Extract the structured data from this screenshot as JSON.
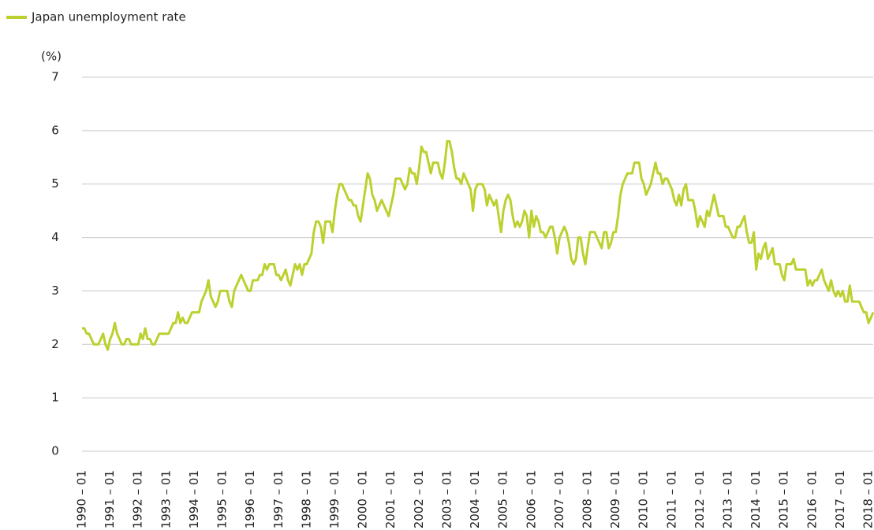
{
  "chart_data": {
    "type": "line",
    "ylabel": "(%)",
    "grid": true,
    "legend": "top-left",
    "ylim": [
      0,
      7
    ],
    "yticks": [
      0,
      1,
      2,
      3,
      4,
      5,
      6,
      7
    ],
    "categories": [
      "1990 – 01",
      null,
      null,
      null,
      null,
      null,
      null,
      null,
      null,
      null,
      null,
      null,
      "1991 – 01",
      null,
      null,
      null,
      null,
      null,
      null,
      null,
      null,
      null,
      null,
      null,
      "1992 – 01",
      null,
      null,
      null,
      null,
      null,
      null,
      null,
      null,
      null,
      null,
      null,
      "1993 – 01",
      null,
      null,
      null,
      null,
      null,
      null,
      null,
      null,
      null,
      null,
      null,
      "1994 – 01",
      null,
      null,
      null,
      null,
      null,
      null,
      null,
      null,
      null,
      null,
      null,
      "1995 – 01",
      null,
      null,
      null,
      null,
      null,
      null,
      null,
      null,
      null,
      null,
      null,
      "1996 – 01",
      null,
      null,
      null,
      null,
      null,
      null,
      null,
      null,
      null,
      null,
      null,
      "1997 – 01",
      null,
      null,
      null,
      null,
      null,
      null,
      null,
      null,
      null,
      null,
      null,
      "1998 – 01",
      null,
      null,
      null,
      null,
      null,
      null,
      null,
      null,
      null,
      null,
      null,
      "1999 – 01",
      null,
      null,
      null,
      null,
      null,
      null,
      null,
      null,
      null,
      null,
      null,
      "2000 – 01",
      null,
      null,
      null,
      null,
      null,
      null,
      null,
      null,
      null,
      null,
      null,
      "2001 – 01",
      null,
      null,
      null,
      null,
      null,
      null,
      null,
      null,
      null,
      null,
      null,
      "2002 – 01",
      null,
      null,
      null,
      null,
      null,
      null,
      null,
      null,
      null,
      null,
      null,
      "2003 – 01",
      null,
      null,
      null,
      null,
      null,
      null,
      null,
      null,
      null,
      null,
      null,
      "2004 – 01",
      null,
      null,
      null,
      null,
      null,
      null,
      null,
      null,
      null,
      null,
      null,
      "2005 – 01",
      null,
      null,
      null,
      null,
      null,
      null,
      null,
      null,
      null,
      null,
      null,
      "2006 – 01",
      null,
      null,
      null,
      null,
      null,
      null,
      null,
      null,
      null,
      null,
      null,
      "2007 – 01",
      null,
      null,
      null,
      null,
      null,
      null,
      null,
      null,
      null,
      null,
      null,
      "2008 – 01",
      null,
      null,
      null,
      null,
      null,
      null,
      null,
      null,
      null,
      null,
      null,
      "2009 – 01",
      null,
      null,
      null,
      null,
      null,
      null,
      null,
      null,
      null,
      null,
      null,
      "2010 – 01",
      null,
      null,
      null,
      null,
      null,
      null,
      null,
      null,
      null,
      null,
      null,
      "2011 – 01",
      null,
      null,
      null,
      null,
      null,
      null,
      null,
      null,
      null,
      null,
      null,
      "2012 – 01",
      null,
      null,
      null,
      null,
      null,
      null,
      null,
      null,
      null,
      null,
      null,
      "2013 – 01",
      null,
      null,
      null,
      null,
      null,
      null,
      null,
      null,
      null,
      null,
      null,
      "2014 – 01",
      null,
      null,
      null,
      null,
      null,
      null,
      null,
      null,
      null,
      null,
      null,
      "2015 – 01",
      null,
      null,
      null,
      null,
      null,
      null,
      null,
      null,
      null,
      null,
      null,
      "2016 – 01",
      null,
      null,
      null,
      null,
      null,
      null,
      null,
      null,
      null,
      null,
      null,
      "2017 – 01",
      null,
      null,
      null,
      null,
      null,
      null,
      null,
      null,
      null,
      null,
      null,
      "2018 – 01",
      null,
      null
    ],
    "series": [
      {
        "name": "Japan unemployment rate",
        "color": "#bcd02f",
        "values": [
          2.3,
          2.3,
          2.2,
          2.2,
          2.1,
          2.0,
          2.0,
          2.0,
          2.1,
          2.2,
          2.0,
          1.9,
          2.1,
          2.2,
          2.4,
          2.2,
          2.1,
          2.0,
          2.0,
          2.1,
          2.1,
          2.0,
          2.0,
          2.0,
          2.0,
          2.2,
          2.1,
          2.3,
          2.1,
          2.1,
          2.0,
          2.0,
          2.1,
          2.2,
          2.2,
          2.2,
          2.2,
          2.2,
          2.3,
          2.4,
          2.4,
          2.6,
          2.4,
          2.5,
          2.4,
          2.4,
          2.5,
          2.6,
          2.6,
          2.6,
          2.6,
          2.8,
          2.9,
          3.0,
          3.2,
          2.9,
          2.8,
          2.7,
          2.8,
          3.0,
          3.0,
          3.0,
          3.0,
          2.8,
          2.7,
          3.0,
          3.1,
          3.2,
          3.3,
          3.2,
          3.1,
          3.0,
          3.0,
          3.2,
          3.2,
          3.2,
          3.3,
          3.3,
          3.5,
          3.4,
          3.5,
          3.5,
          3.5,
          3.3,
          3.3,
          3.2,
          3.3,
          3.4,
          3.2,
          3.1,
          3.3,
          3.5,
          3.4,
          3.5,
          3.3,
          3.5,
          3.5,
          3.6,
          3.7,
          4.1,
          4.3,
          4.3,
          4.2,
          3.9,
          4.3,
          4.3,
          4.3,
          4.1,
          4.5,
          4.8,
          5.0,
          5.0,
          4.9,
          4.8,
          4.7,
          4.7,
          4.6,
          4.6,
          4.4,
          4.3,
          4.6,
          4.9,
          5.2,
          5.1,
          4.8,
          4.7,
          4.5,
          4.6,
          4.7,
          4.6,
          4.5,
          4.4,
          4.6,
          4.8,
          5.1,
          5.1,
          5.1,
          5.0,
          4.9,
          5.0,
          5.3,
          5.2,
          5.2,
          5.0,
          5.3,
          5.7,
          5.6,
          5.6,
          5.4,
          5.2,
          5.4,
          5.4,
          5.4,
          5.2,
          5.1,
          5.4,
          5.8,
          5.8,
          5.6,
          5.3,
          5.1,
          5.1,
          5.0,
          5.2,
          5.1,
          5.0,
          4.9,
          4.5,
          4.9,
          5.0,
          5.0,
          5.0,
          4.9,
          4.6,
          4.8,
          4.7,
          4.6,
          4.7,
          4.4,
          4.1,
          4.5,
          4.7,
          4.8,
          4.7,
          4.4,
          4.2,
          4.3,
          4.2,
          4.3,
          4.5,
          4.4,
          4.0,
          4.5,
          4.2,
          4.4,
          4.3,
          4.1,
          4.1,
          4.0,
          4.1,
          4.2,
          4.2,
          4.0,
          3.7,
          4.0,
          4.1,
          4.2,
          4.1,
          3.9,
          3.6,
          3.5,
          3.6,
          4.0,
          4.0,
          3.7,
          3.5,
          3.8,
          4.1,
          4.1,
          4.1,
          4.0,
          3.9,
          3.8,
          4.1,
          4.1,
          3.8,
          3.9,
          4.1,
          4.1,
          4.4,
          4.8,
          5.0,
          5.1,
          5.2,
          5.2,
          5.2,
          5.4,
          5.4,
          5.4,
          5.1,
          5.0,
          4.8,
          4.9,
          5.0,
          5.2,
          5.4,
          5.2,
          5.2,
          5.0,
          5.1,
          5.1,
          5.0,
          4.9,
          4.7,
          4.6,
          4.8,
          4.6,
          4.9,
          5.0,
          4.7,
          4.7,
          4.7,
          4.5,
          4.2,
          4.4,
          4.3,
          4.2,
          4.5,
          4.4,
          4.6,
          4.8,
          4.6,
          4.4,
          4.4,
          4.4,
          4.2,
          4.2,
          4.1,
          4.0,
          4.0,
          4.2,
          4.2,
          4.3,
          4.4,
          4.1,
          3.9,
          3.9,
          4.1,
          3.4,
          3.7,
          3.6,
          3.8,
          3.9,
          3.6,
          3.7,
          3.8,
          3.5,
          3.5,
          3.5,
          3.3,
          3.2,
          3.5,
          3.5,
          3.5,
          3.6,
          3.4,
          3.4,
          3.4,
          3.4,
          3.4,
          3.1,
          3.2,
          3.1,
          3.2,
          3.2,
          3.3,
          3.4,
          3.2,
          3.1,
          3.0,
          3.2,
          3.0,
          2.9,
          3.0,
          2.9,
          3.0,
          2.8,
          2.8,
          3.1,
          2.8,
          2.8,
          2.8,
          2.8,
          2.7,
          2.6,
          2.6,
          2.4,
          2.5,
          2.6
        ]
      }
    ]
  }
}
